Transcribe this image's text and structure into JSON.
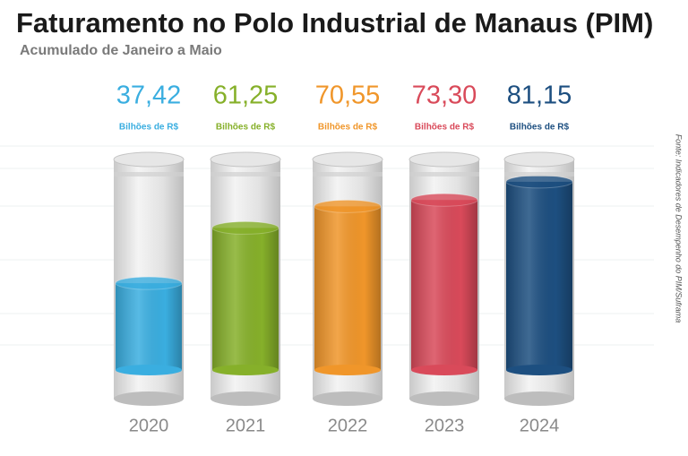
{
  "chart_data": {
    "type": "cylinder",
    "title": "Faturamento no Polo Industrial de Manaus (PIM)",
    "subtitle": "Acumulado de Janeiro a Maio",
    "unit": "Bilhões de R$",
    "source": "Fonte: Indicadores de Desempenho do PIM/Suframa",
    "categories": [
      "2020",
      "2021",
      "2022",
      "2023",
      "2024"
    ],
    "values": [
      37.42,
      61.25,
      70.55,
      73.3,
      81.15
    ],
    "value_labels": [
      "37,42",
      "61,25",
      "70,55",
      "73,30",
      "81,15"
    ],
    "colors": [
      "#3aaee0",
      "#86b02a",
      "#f0962a",
      "#d94a5a",
      "#1d4f80"
    ],
    "ylim": [
      0,
      90
    ]
  }
}
